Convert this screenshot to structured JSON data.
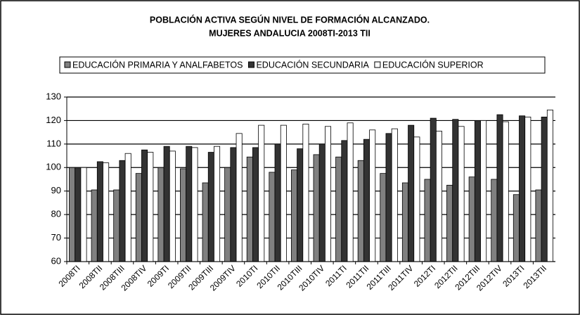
{
  "chart_data": {
    "type": "bar",
    "title": "POBLACIÓN  ACTIVA SEGÚN NIVEL DE FORMACIÓN ALCANZADO.",
    "subtitle": "MUJERES ANDALUCIA 2008TI-2013 TII",
    "categories": [
      "2008TI",
      "2008TII",
      "2008TIII",
      "2008TIV",
      "2009TI",
      "2009TII",
      "2009TIII",
      "2009TIV",
      "2010TI",
      "2010TII",
      "2010TIII",
      "2010TIV",
      "2011TI",
      "2011TII",
      "2011TIII",
      "2011TIV",
      "2012TI",
      "2012TII",
      "2012TIII",
      "2012TIV",
      "2013TI",
      "2013TII"
    ],
    "series": [
      {
        "name": "EDUCACIÓN PRIMARIA Y ANALFABETOS",
        "color": "#808080",
        "values": [
          100,
          90.5,
          90.5,
          97.5,
          100,
          99.5,
          93.5,
          100,
          104.5,
          98,
          99,
          105.5,
          104.5,
          103,
          97.5,
          93.5,
          95,
          92.5,
          96,
          95,
          88.5,
          90.5
        ]
      },
      {
        "name": "EDUCACIÓN SECUNDARIA",
        "color": "#333333",
        "values": [
          100,
          102.5,
          103,
          107.5,
          109,
          109,
          106.5,
          108.5,
          108.5,
          110,
          108,
          110,
          111.5,
          112,
          114.5,
          118,
          121,
          120.5,
          120,
          122.5,
          122,
          121.5
        ]
      },
      {
        "name": "EDUCACIÓN SUPERIOR",
        "color": "#ffffff",
        "values": [
          100,
          102,
          106,
          106.5,
          107,
          108.5,
          109,
          114.5,
          118,
          118,
          118.5,
          117.5,
          119,
          116,
          116.5,
          113,
          115.5,
          117.5,
          120,
          119.5,
          121.5,
          124.5
        ]
      }
    ],
    "ylim": [
      60,
      130
    ],
    "yticks": [
      60,
      70,
      80,
      90,
      100,
      110,
      120,
      130
    ],
    "grid": true,
    "legend": "top"
  }
}
